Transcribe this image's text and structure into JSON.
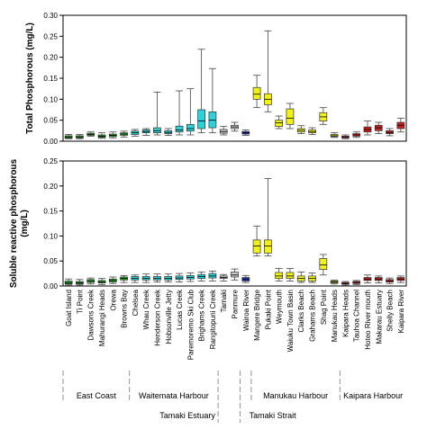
{
  "chart_data": [
    {
      "type": "box",
      "ylabel": "Total Phosphorous (mg/L)",
      "ylim": [
        0,
        0.3
      ],
      "yticks": [
        "0.00",
        "0.05",
        "0.10",
        "0.15",
        "0.20",
        "0.25",
        "0.30"
      ],
      "boxes": [
        {
          "q1": 0.007,
          "median": 0.01,
          "q3": 0.013,
          "min": 0.006,
          "max": 0.016
        },
        {
          "q1": 0.008,
          "median": 0.01,
          "q3": 0.013,
          "min": 0.006,
          "max": 0.016
        },
        {
          "q1": 0.014,
          "median": 0.016,
          "q3": 0.019,
          "min": 0.012,
          "max": 0.022
        },
        {
          "q1": 0.009,
          "median": 0.012,
          "q3": 0.015,
          "min": 0.007,
          "max": 0.02
        },
        {
          "q1": 0.011,
          "median": 0.014,
          "q3": 0.017,
          "min": 0.008,
          "max": 0.022
        },
        {
          "q1": 0.014,
          "median": 0.017,
          "q3": 0.02,
          "min": 0.01,
          "max": 0.024
        },
        {
          "q1": 0.016,
          "median": 0.02,
          "q3": 0.024,
          "min": 0.012,
          "max": 0.028
        },
        {
          "q1": 0.02,
          "median": 0.023,
          "q3": 0.027,
          "min": 0.014,
          "max": 0.03
        },
        {
          "q1": 0.02,
          "median": 0.025,
          "q3": 0.032,
          "min": 0.015,
          "max": 0.117
        },
        {
          "q1": 0.018,
          "median": 0.021,
          "q3": 0.025,
          "min": 0.014,
          "max": 0.03
        },
        {
          "q1": 0.022,
          "median": 0.027,
          "q3": 0.036,
          "min": 0.015,
          "max": 0.12
        },
        {
          "q1": 0.024,
          "median": 0.03,
          "q3": 0.04,
          "min": 0.015,
          "max": 0.125
        },
        {
          "q1": 0.03,
          "median": 0.048,
          "q3": 0.075,
          "min": 0.02,
          "max": 0.219
        },
        {
          "q1": 0.032,
          "median": 0.05,
          "q3": 0.07,
          "min": 0.02,
          "max": 0.173
        },
        {
          "q1": 0.019,
          "median": 0.023,
          "q3": 0.028,
          "min": 0.015,
          "max": 0.035
        },
        {
          "q1": 0.03,
          "median": 0.034,
          "q3": 0.038,
          "min": 0.024,
          "max": 0.045
        },
        {
          "q1": 0.017,
          "median": 0.02,
          "q3": 0.023,
          "min": 0.014,
          "max": 0.027
        },
        {
          "q1": 0.1,
          "median": 0.112,
          "q3": 0.128,
          "min": 0.08,
          "max": 0.157
        },
        {
          "q1": 0.087,
          "median": 0.1,
          "q3": 0.113,
          "min": 0.07,
          "max": 0.263
        },
        {
          "q1": 0.035,
          "median": 0.044,
          "q3": 0.05,
          "min": 0.03,
          "max": 0.06
        },
        {
          "q1": 0.04,
          "median": 0.055,
          "q3": 0.077,
          "min": 0.03,
          "max": 0.09
        },
        {
          "q1": 0.022,
          "median": 0.026,
          "q3": 0.03,
          "min": 0.018,
          "max": 0.037
        },
        {
          "q1": 0.02,
          "median": 0.023,
          "q3": 0.027,
          "min": 0.016,
          "max": 0.032
        },
        {
          "q1": 0.048,
          "median": 0.058,
          "q3": 0.068,
          "min": 0.04,
          "max": 0.08
        },
        {
          "q1": 0.011,
          "median": 0.013,
          "q3": 0.016,
          "min": 0.009,
          "max": 0.02
        },
        {
          "q1": 0.008,
          "median": 0.01,
          "q3": 0.012,
          "min": 0.006,
          "max": 0.015
        },
        {
          "q1": 0.012,
          "median": 0.015,
          "q3": 0.018,
          "min": 0.009,
          "max": 0.022
        },
        {
          "q1": 0.022,
          "median": 0.028,
          "q3": 0.034,
          "min": 0.015,
          "max": 0.048
        },
        {
          "q1": 0.025,
          "median": 0.032,
          "q3": 0.038,
          "min": 0.018,
          "max": 0.045
        },
        {
          "q1": 0.018,
          "median": 0.021,
          "q3": 0.025,
          "min": 0.013,
          "max": 0.03
        },
        {
          "q1": 0.03,
          "median": 0.038,
          "q3": 0.045,
          "min": 0.022,
          "max": 0.055
        }
      ]
    },
    {
      "type": "box",
      "ylabel": "Soluble reactive phosphorous (mg/L)",
      "ylim": [
        0,
        0.25
      ],
      "yticks": [
        "0.00",
        "0.05",
        "0.10",
        "0.15",
        "0.20",
        "0.25"
      ],
      "boxes": [
        {
          "q1": 0.004,
          "median": 0.006,
          "q3": 0.01,
          "min": 0.002,
          "max": 0.014
        },
        {
          "q1": 0.004,
          "median": 0.006,
          "q3": 0.009,
          "min": 0.002,
          "max": 0.013
        },
        {
          "q1": 0.007,
          "median": 0.01,
          "q3": 0.013,
          "min": 0.004,
          "max": 0.016
        },
        {
          "q1": 0.006,
          "median": 0.008,
          "q3": 0.011,
          "min": 0.003,
          "max": 0.015
        },
        {
          "q1": 0.008,
          "median": 0.011,
          "q3": 0.014,
          "min": 0.005,
          "max": 0.018
        },
        {
          "q1": 0.012,
          "median": 0.015,
          "q3": 0.018,
          "min": 0.007,
          "max": 0.021
        },
        {
          "q1": 0.012,
          "median": 0.015,
          "q3": 0.019,
          "min": 0.007,
          "max": 0.022
        },
        {
          "q1": 0.012,
          "median": 0.015,
          "q3": 0.019,
          "min": 0.007,
          "max": 0.024
        },
        {
          "q1": 0.012,
          "median": 0.015,
          "q3": 0.019,
          "min": 0.008,
          "max": 0.024
        },
        {
          "q1": 0.012,
          "median": 0.015,
          "q3": 0.019,
          "min": 0.008,
          "max": 0.024
        },
        {
          "q1": 0.013,
          "median": 0.016,
          "q3": 0.02,
          "min": 0.008,
          "max": 0.025
        },
        {
          "q1": 0.014,
          "median": 0.017,
          "q3": 0.021,
          "min": 0.009,
          "max": 0.026
        },
        {
          "q1": 0.015,
          "median": 0.019,
          "q3": 0.023,
          "min": 0.01,
          "max": 0.028
        },
        {
          "q1": 0.016,
          "median": 0.02,
          "q3": 0.025,
          "min": 0.01,
          "max": 0.03
        },
        {
          "q1": 0.015,
          "median": 0.017,
          "q3": 0.02,
          "min": 0.01,
          "max": 0.023
        },
        {
          "q1": 0.018,
          "median": 0.022,
          "q3": 0.028,
          "min": 0.012,
          "max": 0.034
        },
        {
          "q1": 0.01,
          "median": 0.013,
          "q3": 0.017,
          "min": 0.007,
          "max": 0.021
        },
        {
          "q1": 0.066,
          "median": 0.08,
          "q3": 0.092,
          "min": 0.06,
          "max": 0.12
        },
        {
          "q1": 0.066,
          "median": 0.08,
          "q3": 0.092,
          "min": 0.06,
          "max": 0.215
        },
        {
          "q1": 0.015,
          "median": 0.02,
          "q3": 0.027,
          "min": 0.01,
          "max": 0.035
        },
        {
          "q1": 0.015,
          "median": 0.02,
          "q3": 0.027,
          "min": 0.01,
          "max": 0.035
        },
        {
          "q1": 0.01,
          "median": 0.015,
          "q3": 0.02,
          "min": 0.007,
          "max": 0.028
        },
        {
          "q1": 0.01,
          "median": 0.015,
          "q3": 0.02,
          "min": 0.007,
          "max": 0.026
        },
        {
          "q1": 0.033,
          "median": 0.042,
          "q3": 0.055,
          "min": 0.022,
          "max": 0.063
        },
        {
          "q1": 0.006,
          "median": 0.008,
          "q3": 0.01,
          "min": 0.004,
          "max": 0.012
        },
        {
          "q1": 0.004,
          "median": 0.005,
          "q3": 0.007,
          "min": 0.002,
          "max": 0.009
        },
        {
          "q1": 0.005,
          "median": 0.007,
          "q3": 0.009,
          "min": 0.003,
          "max": 0.011
        },
        {
          "q1": 0.011,
          "median": 0.014,
          "q3": 0.017,
          "min": 0.006,
          "max": 0.022
        },
        {
          "q1": 0.011,
          "median": 0.014,
          "q3": 0.017,
          "min": 0.006,
          "max": 0.02
        },
        {
          "q1": 0.008,
          "median": 0.01,
          "q3": 0.013,
          "min": 0.005,
          "max": 0.016
        },
        {
          "q1": 0.011,
          "median": 0.014,
          "q3": 0.017,
          "min": 0.007,
          "max": 0.02
        }
      ]
    }
  ],
  "sites": [
    "Goat Island",
    "Ti Point",
    "Dawsons Creek",
    "Mahurangi Heads",
    "Orewa",
    "Browns Bay",
    "Chelsea",
    "Whau Creek",
    "Henderson Creek",
    "Hobsonville Jetty",
    "Lucas Creek",
    "Paremoremo Ski Club",
    "Brighams Creek",
    "Rangitopuni Creek",
    "Tamaki",
    "Panmure",
    "Wairoa River",
    "Mangere Bridge",
    "Pukaki Point",
    "Weymouth",
    "Waiuku Town Basin",
    "Clarks Beach",
    "Grahams Beach",
    "Shag Point",
    "Manukau Heads",
    "Kaipara Heads",
    "Tauhoa Channel",
    "Hoteo River mouth",
    "Makarau Estuary",
    "Shelly Beach",
    "Kaipara River"
  ],
  "site_colors": [
    "#22a822",
    "#22a822",
    "#22a822",
    "#22a822",
    "#22a822",
    "#22a822",
    "#2fd0d8",
    "#2fd0d8",
    "#2fd0d8",
    "#2fd0d8",
    "#2fd0d8",
    "#2fd0d8",
    "#2fd0d8",
    "#2fd0d8",
    "#c8c8c8",
    "#c8c8c8",
    "#1a2fc0",
    "#f2f21a",
    "#f2f21a",
    "#f2f21a",
    "#f2f21a",
    "#f2f21a",
    "#f2f21a",
    "#f2f21a",
    "#f2f21a",
    "#cc1f1f",
    "#cc1f1f",
    "#cc1f1f",
    "#cc1f1f",
    "#cc1f1f",
    "#cc1f1f"
  ],
  "groups": {
    "east_coast": "East Coast",
    "waitemata": "Waitemata Harbour",
    "manukau": "Manukau Harbour",
    "kaipara": "Kaipara Harbour",
    "tamaki_estuary": "Tamaki Estuary",
    "tamaki_strait": "Tamaki Strait"
  }
}
